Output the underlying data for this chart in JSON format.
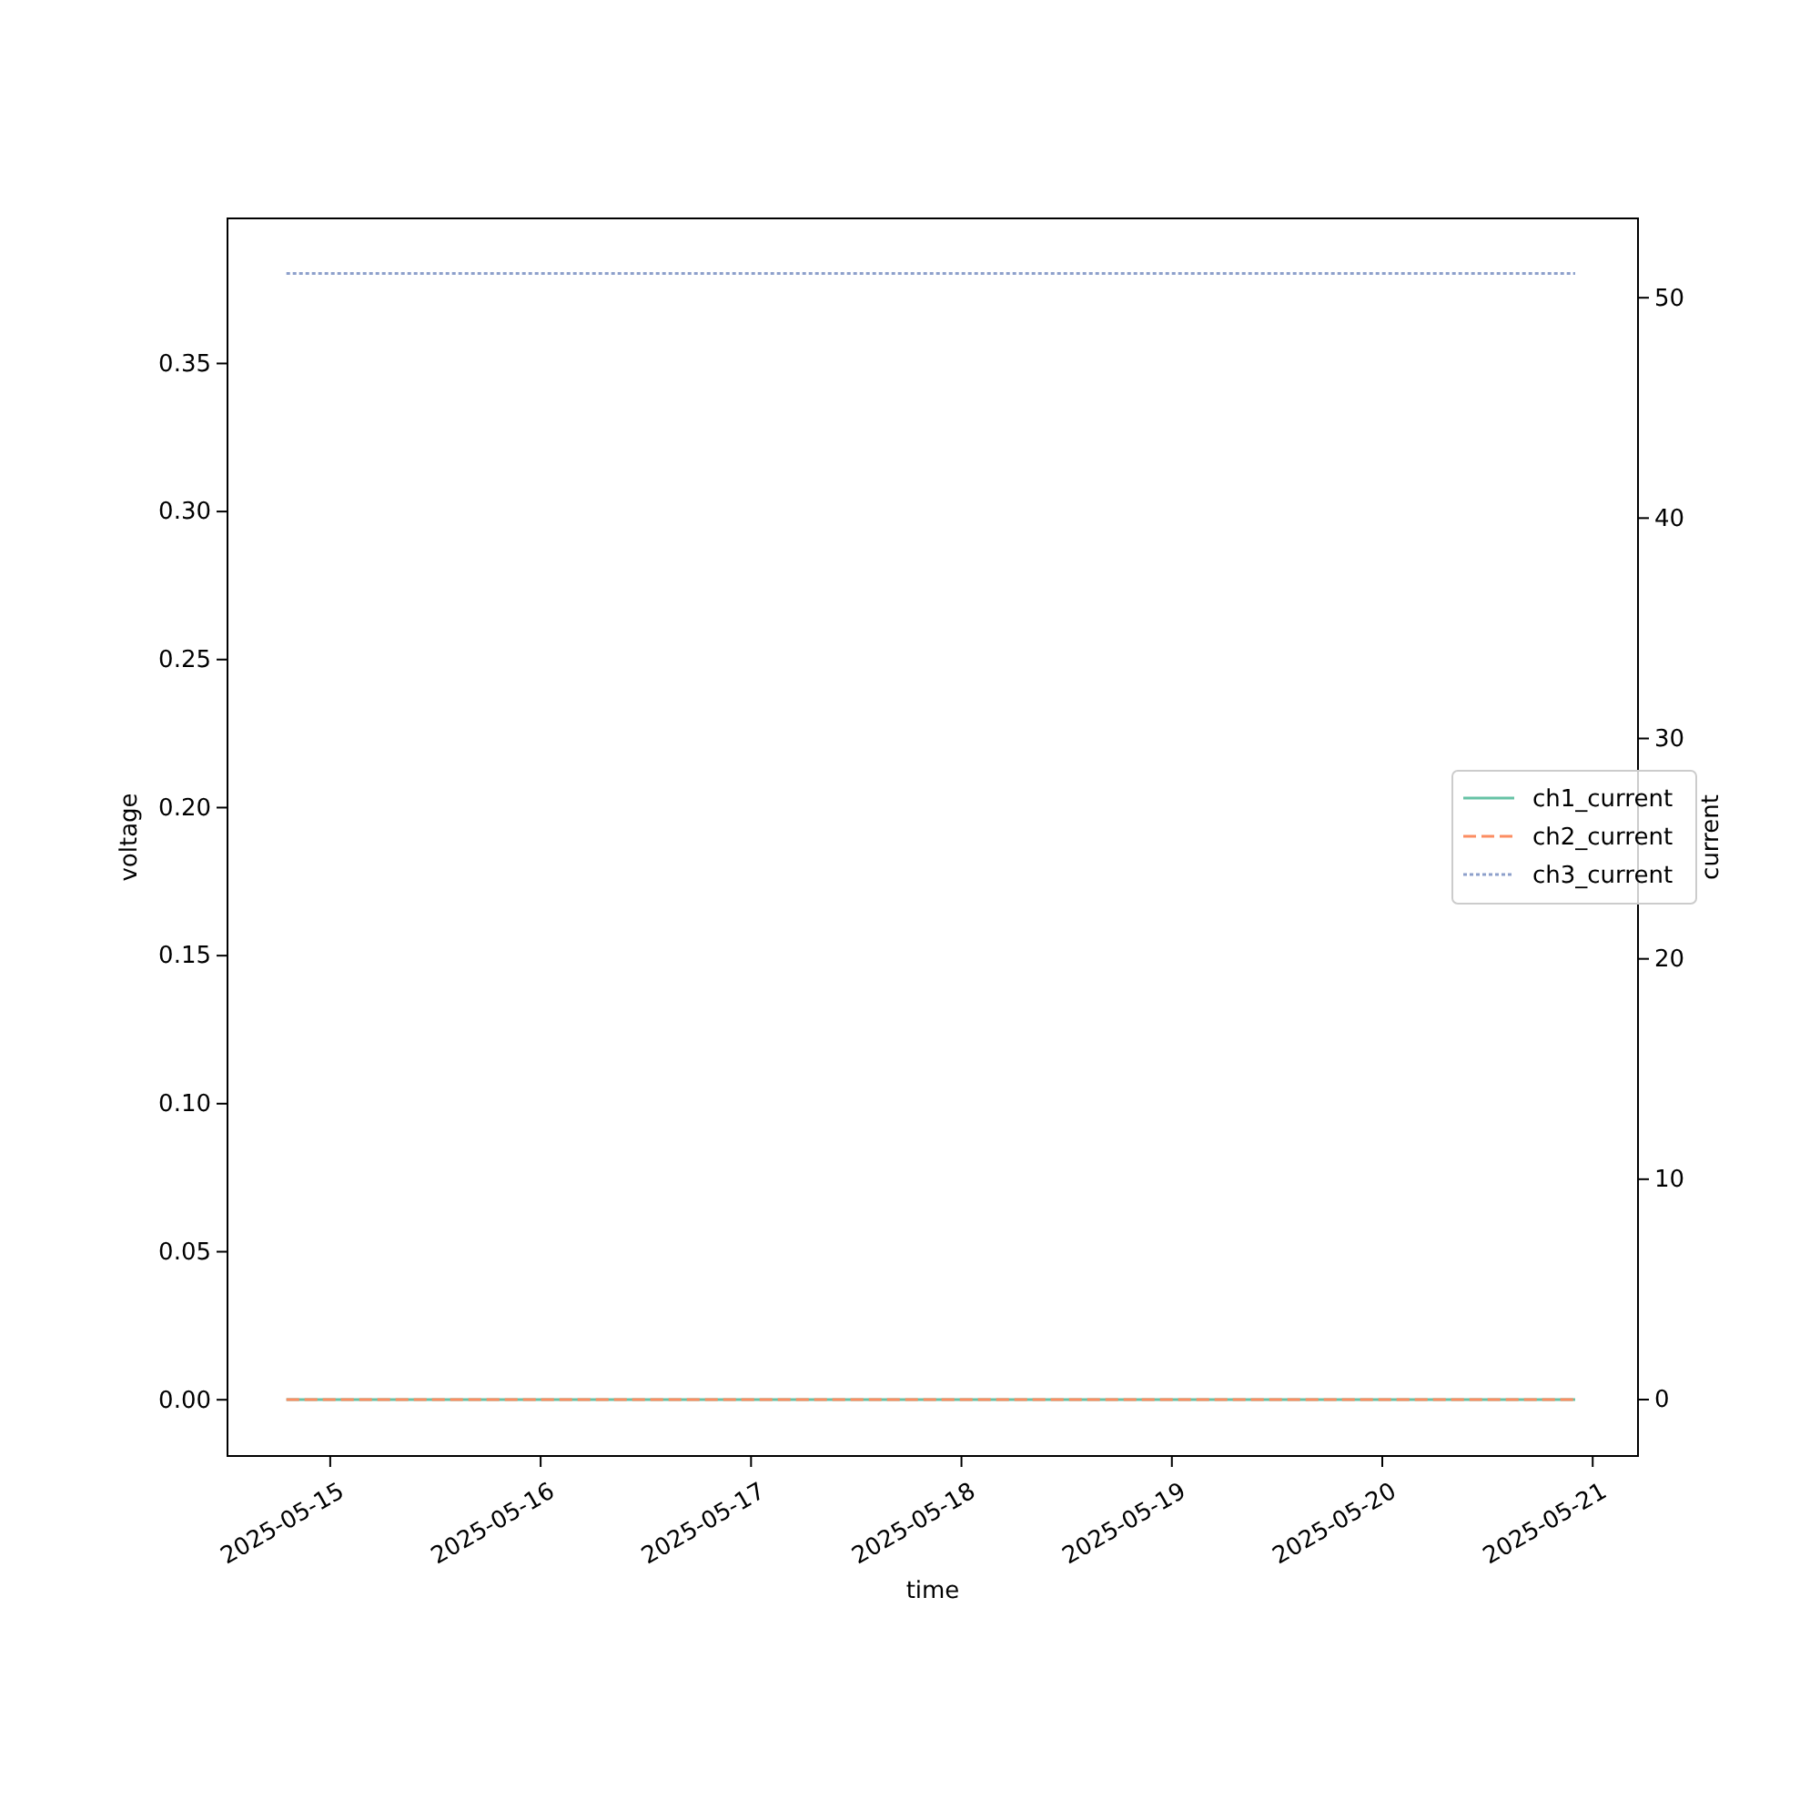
{
  "chart_data": {
    "type": "line",
    "xlabel": "time",
    "ylabel": "voltage",
    "y2label": "current",
    "xlim": [
      "2025-05-14T12:17",
      "2025-05-21T05:10"
    ],
    "xticks": [
      {
        "value": "2025-05-15",
        "label": "2025-05-15"
      },
      {
        "value": "2025-05-16",
        "label": "2025-05-16"
      },
      {
        "value": "2025-05-17",
        "label": "2025-05-17"
      },
      {
        "value": "2025-05-18",
        "label": "2025-05-18"
      },
      {
        "value": "2025-05-19",
        "label": "2025-05-19"
      },
      {
        "value": "2025-05-20",
        "label": "2025-05-20"
      },
      {
        "value": "2025-05-21",
        "label": "2025-05-21"
      }
    ],
    "ylim": [
      -0.019,
      0.399
    ],
    "yticks": [
      {
        "value": 0,
        "label": "0.00"
      },
      {
        "value": 0.05,
        "label": "0.05"
      },
      {
        "value": 0.1,
        "label": "0.10"
      },
      {
        "value": 0.15,
        "label": "0.15"
      },
      {
        "value": 0.2,
        "label": "0.20"
      },
      {
        "value": 0.25,
        "label": "0.25"
      },
      {
        "value": 0.3,
        "label": "0.30"
      },
      {
        "value": 0.35,
        "label": "0.35"
      }
    ],
    "y2lim": [
      -2.56,
      53.6
    ],
    "y2ticks": [
      0,
      10,
      20,
      30,
      40,
      50
    ],
    "x": [
      "2025-05-14T19:00",
      "2025-05-20T22:00"
    ],
    "series": [
      {
        "name": "ch1_current",
        "color": "#66c2a5",
        "values": [
          0,
          0
        ],
        "axis": "y2",
        "line_style": "solid"
      },
      {
        "name": "ch2_current",
        "color": "#fc8d62",
        "values": [
          0,
          0
        ],
        "axis": "y2",
        "line_style": "dashed"
      },
      {
        "name": "ch3_current",
        "color": "#8da0cb",
        "values": [
          51.1,
          51.1
        ],
        "axis": "y2",
        "line_style": "dotted"
      }
    ],
    "legend": "right",
    "grid": false,
    "marker": "none"
  }
}
